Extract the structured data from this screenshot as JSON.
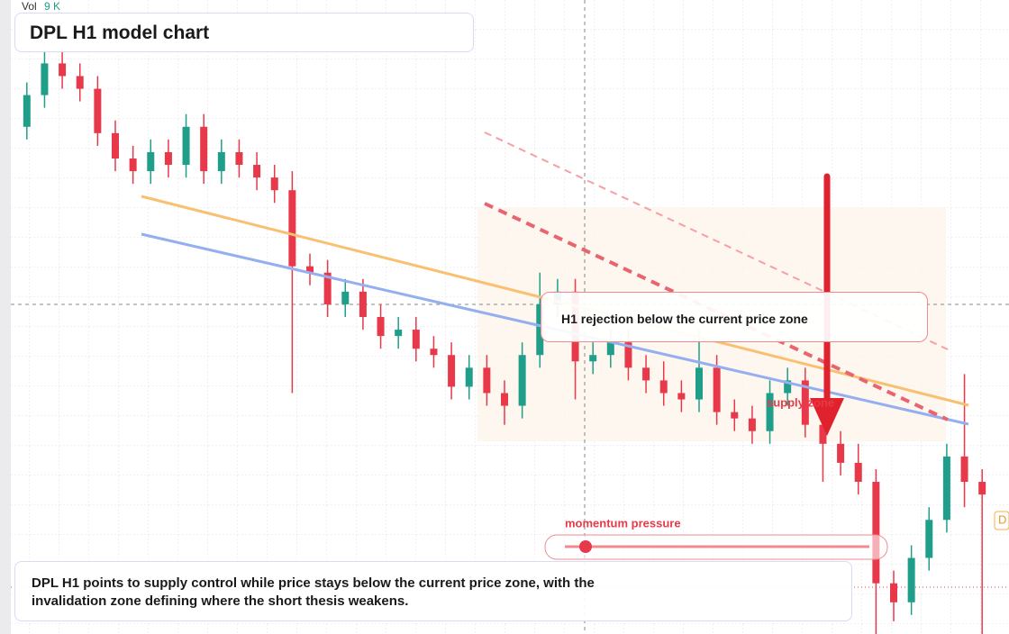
{
  "chart_data": {
    "type": "candlestick",
    "title": "DPL H1 model chart",
    "volume_label": "Vol",
    "volume_value": "9 K",
    "ylim": [
      0,
      100
    ],
    "up_color": "#1f9e89",
    "down_color": "#e8394a",
    "categories": [
      null,
      null,
      null,
      null,
      null,
      null,
      null,
      null,
      null,
      null,
      null,
      null,
      null,
      null,
      null,
      null,
      null,
      null,
      null,
      null,
      null,
      null,
      null,
      null,
      null,
      null,
      null,
      null,
      null,
      null,
      null,
      null,
      null,
      null,
      null,
      null,
      null,
      null,
      null,
      null,
      null,
      null,
      null,
      null,
      null,
      null,
      null,
      null,
      null,
      null,
      null,
      null,
      null,
      null,
      null
    ],
    "open": [
      80,
      85,
      90,
      88,
      86,
      79,
      75,
      73,
      76,
      74,
      80,
      73,
      76,
      74,
      72,
      70,
      58,
      57,
      52,
      54,
      50,
      47,
      48,
      45,
      44,
      39,
      42,
      38,
      36,
      44,
      52,
      54,
      43,
      44,
      46,
      42,
      40,
      38,
      37,
      42,
      35,
      34,
      32,
      38,
      40,
      33,
      30,
      27,
      24,
      8,
      5,
      12,
      18,
      28,
      24
    ],
    "high": [
      87,
      92,
      92,
      90,
      88,
      81,
      77,
      78,
      78,
      82,
      82,
      78,
      78,
      76,
      74,
      73,
      60,
      59,
      56,
      56,
      52,
      50,
      50,
      47,
      46,
      44,
      44,
      40,
      46,
      57,
      56,
      56,
      46,
      48,
      48,
      44,
      43,
      40,
      48,
      44,
      37,
      36,
      40,
      42,
      42,
      35,
      32,
      30,
      26,
      10,
      14,
      20,
      30,
      41,
      26
    ],
    "low": [
      78,
      83,
      86,
      84,
      77,
      73,
      71,
      71,
      72,
      72,
      71,
      71,
      72,
      70,
      68,
      38,
      55,
      50,
      50,
      48,
      45,
      45,
      43,
      42,
      37,
      37,
      36,
      33,
      34,
      42,
      50,
      37,
      41,
      42,
      40,
      38,
      36,
      35,
      35,
      33,
      32,
      30,
      30,
      36,
      31,
      24,
      25,
      22,
      0,
      2,
      3,
      10,
      16,
      20,
      0
    ],
    "close": [
      85,
      90,
      88,
      86,
      79,
      75,
      73,
      76,
      74,
      80,
      73,
      76,
      74,
      72,
      70,
      58,
      57,
      52,
      54,
      50,
      47,
      48,
      45,
      44,
      39,
      42,
      38,
      36,
      44,
      52,
      54,
      43,
      44,
      46,
      42,
      40,
      38,
      37,
      42,
      35,
      34,
      32,
      38,
      40,
      33,
      30,
      27,
      24,
      8,
      5,
      12,
      18,
      28,
      24,
      22
    ],
    "annotations": [
      "H1 rejection below the current price zone",
      "supply zone",
      "momentum pressure"
    ],
    "edge_label": "D",
    "caption": "DPL H1 points to supply control while price stays below the current price zone, with the invalidation zone defining where the short thesis weakens."
  }
}
